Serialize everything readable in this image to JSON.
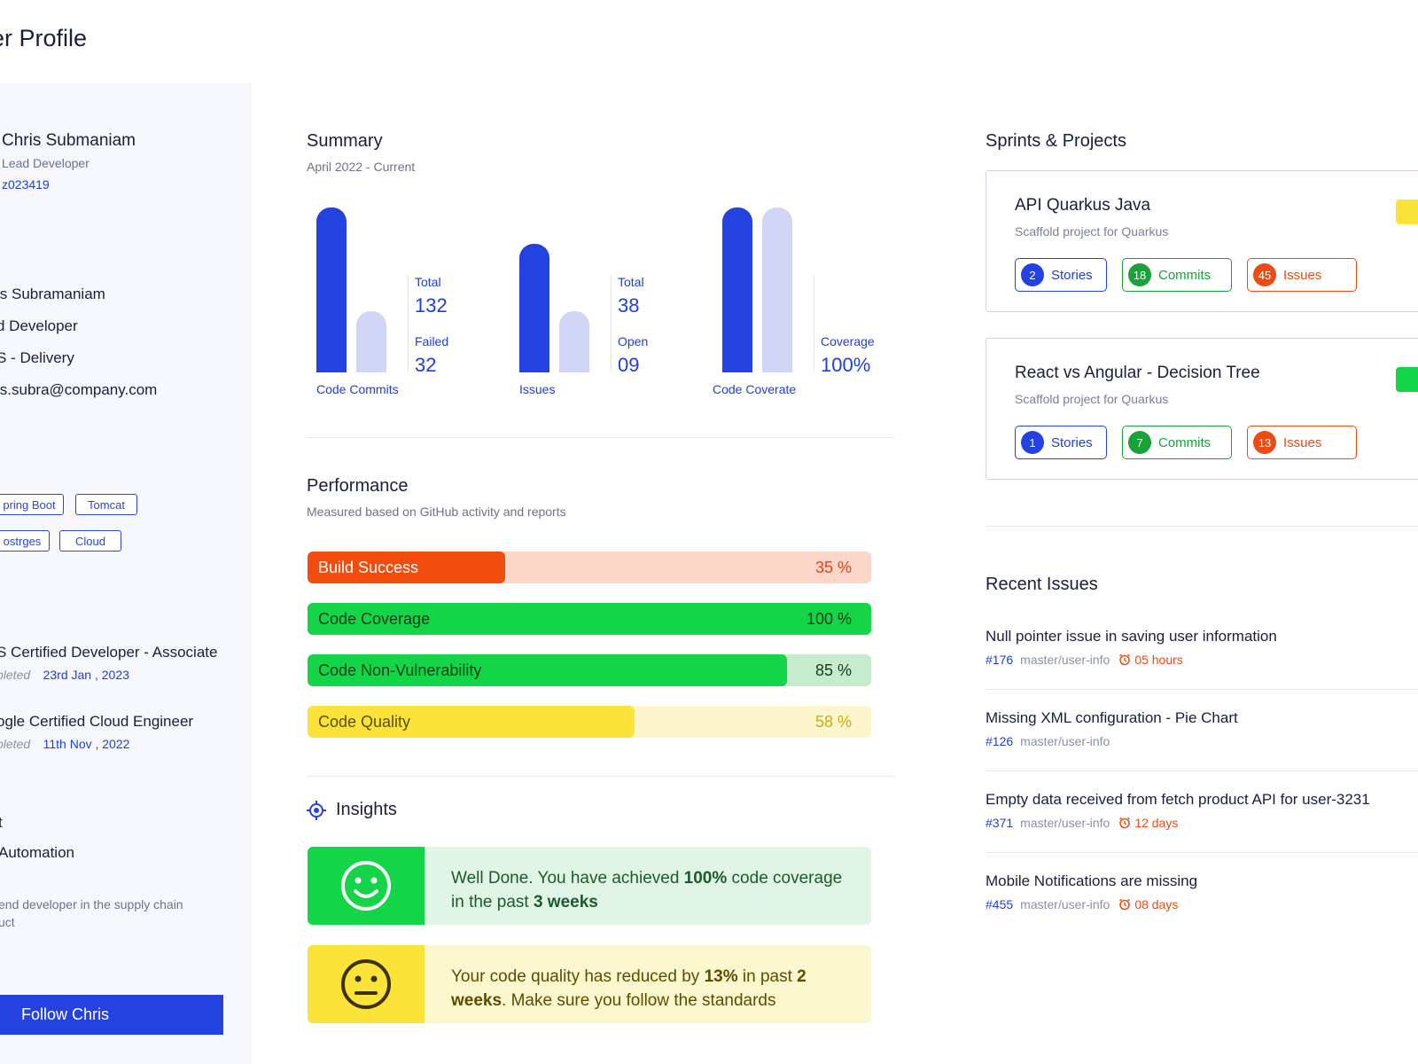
{
  "page_title": "er Profile",
  "profile": {
    "name": "Chris Submaniam",
    "role": "Lead Developer",
    "employee_id": "z023419",
    "details": [
      "is Subramaniam",
      "d Developer",
      "S - Delivery",
      "is.subra@company.com"
    ],
    "skills": [
      "pring Boot",
      "Tomcat",
      "ostrges",
      "Cloud"
    ],
    "certifications": [
      {
        "title": "S Certified Developer  - Associate",
        "status": "pleted",
        "date": "23rd Jan , 2023"
      },
      {
        "title": "ogle Certified Cloud Engineer",
        "status": "pleted",
        "date": "11th Nov , 2022"
      }
    ],
    "team_heading": "t",
    "team_name": "Automation",
    "about": "end developer in the supply chain uct",
    "about_line1": "end developer in the supply chain",
    "about_line2": "uct",
    "follow_label": "Follow Chris"
  },
  "summary": {
    "title": "Summary",
    "period": "April 2022 - Current",
    "groups": [
      {
        "label": "Code Commits",
        "stats": [
          {
            "label": "Total",
            "value": "132"
          },
          {
            "label": "Failed",
            "value": "32"
          }
        ],
        "bar_values": [
          132,
          32
        ]
      },
      {
        "label": "Issues",
        "stats": [
          {
            "label": "Total",
            "value": "38"
          },
          {
            "label": "Open",
            "value": "09"
          }
        ],
        "bar_values": [
          38,
          9
        ]
      },
      {
        "label": "Code Coverate",
        "stats": [
          {
            "label": "Coverage",
            "value": "100%"
          }
        ],
        "bar_values": [
          100,
          100
        ]
      }
    ]
  },
  "performance": {
    "title": "Performance",
    "subtitle": "Measured based on GitHub activity and reports",
    "metrics": [
      {
        "label": "Build Success",
        "value": "35 %",
        "percent": 35,
        "fill": "#f24d0f",
        "track": "#fbd6c9",
        "label_color": "#ffffff",
        "value_color": "#e8440f"
      },
      {
        "label": "Code Coverage",
        "value": "100 %",
        "percent": 100,
        "fill": "#14d447",
        "track": "#14d447",
        "label_color": "#0f3d1a",
        "value_color": "#0f3d1a"
      },
      {
        "label": "Code Non-Vulnerability",
        "value": "85 %",
        "percent": 85,
        "fill": "#14d447",
        "track": "#c6ecd0",
        "label_color": "#0f3d1a",
        "value_color": "#0f3d1a"
      },
      {
        "label": "Code Quality",
        "value": "58 %",
        "percent": 58,
        "fill": "#fce33a",
        "track": "#fdf6cc",
        "label_color": "#5c4d00",
        "value_color": "#c9ab12"
      }
    ]
  },
  "insights": {
    "title": "Insights",
    "items": [
      {
        "mood": "happy",
        "text_before": "Well Done. You have achieved ",
        "bold1": "100%",
        "text_mid": " code coverage in the past ",
        "bold2": "3 weeks",
        "text_after": ""
      },
      {
        "mood": "neutral",
        "text_before": "Your code quality has reduced by ",
        "bold1": "13%",
        "text_mid": " in past ",
        "bold2": "2 weeks",
        "text_after": ". Make sure you follow the standards"
      }
    ]
  },
  "projects": {
    "title": "Sprints & Projects",
    "items": [
      {
        "name": "API Quarkus Java",
        "description": "Scaffold project for Quarkus",
        "stories": "2",
        "commits": "18",
        "issues": "45",
        "status_color": "#fce33a",
        "labels": {
          "stories": "Stories",
          "commits": "Commits",
          "issues": "Issues"
        }
      },
      {
        "name": "React vs Angular - Decision Tree",
        "description": "Scaffold project for Quarkus",
        "stories": "1",
        "commits": "7",
        "issues": "13",
        "status_color": "#14d447",
        "labels": {
          "stories": "Stories",
          "commits": "Commits",
          "issues": "Issues"
        }
      }
    ]
  },
  "recent_issues": {
    "title": "Recent Issues",
    "items": [
      {
        "title": "Null pointer issue in saving user information",
        "number": "#176",
        "branch": "master/user-info",
        "age": "05 hours"
      },
      {
        "title": "Missing XML configuration - Pie Chart",
        "number": "#126",
        "branch": "master/user-info",
        "age": ""
      },
      {
        "title": "Empty data received from fetch product API for user-3231",
        "number": "#371",
        "branch": "master/user-info",
        "age": "12 days"
      },
      {
        "title": "Mobile Notifications are missing",
        "number": "#455",
        "branch": "master/user-info",
        "age": "08 days"
      }
    ]
  }
}
